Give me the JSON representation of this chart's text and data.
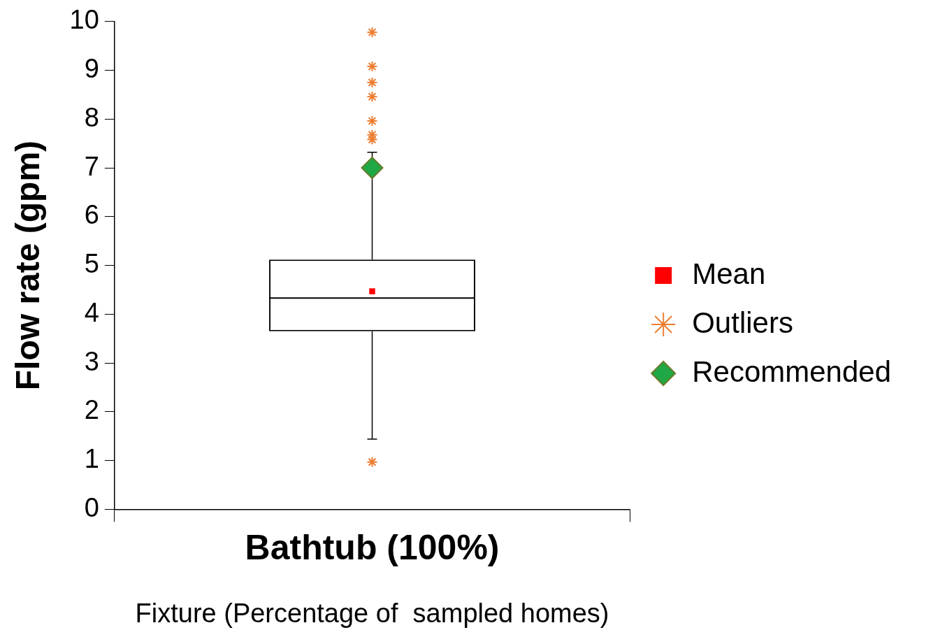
{
  "chart_data": {
    "type": "box",
    "xlabel": "Fixture (Percentage of  sampled homes)",
    "ylabel": "Flow rate (gpm)",
    "categories": [
      "Bathtub (100%)"
    ],
    "ylim": [
      0,
      10
    ],
    "yticks": [
      0,
      1,
      2,
      3,
      4,
      5,
      6,
      7,
      8,
      9,
      10
    ],
    "grid": false,
    "legend": "right",
    "series": [
      {
        "type": "box",
        "color": "#000000",
        "boxes": [
          {
            "low": 1.44,
            "q1": 3.65,
            "median": 4.33,
            "q3": 5.12,
            "high": 7.32
          }
        ]
      },
      {
        "type": "scatter",
        "name": "Mean",
        "color": "#ff0000",
        "marker": "square",
        "x": [
          "Bathtub (100%)"
        ],
        "values": [
          4.47
        ]
      },
      {
        "type": "scatter",
        "name": "Outliers",
        "color": "#ed7d31",
        "marker": "cross",
        "x": [
          "Bathtub (100%)",
          "Bathtub (100%)",
          "Bathtub (100%)",
          "Bathtub (100%)",
          "Bathtub (100%)",
          "Bathtub (100%)",
          "Bathtub (100%)",
          "Bathtub (100%)"
        ],
        "values": [
          9.78,
          9.08,
          8.75,
          8.46,
          7.96,
          7.68,
          7.58,
          0.97
        ]
      },
      {
        "type": "scatter",
        "name": "Recommended",
        "color": "#1fa845",
        "marker": "diamond",
        "x": [
          "Bathtub (100%)"
        ],
        "values": [
          7.0
        ]
      }
    ]
  }
}
